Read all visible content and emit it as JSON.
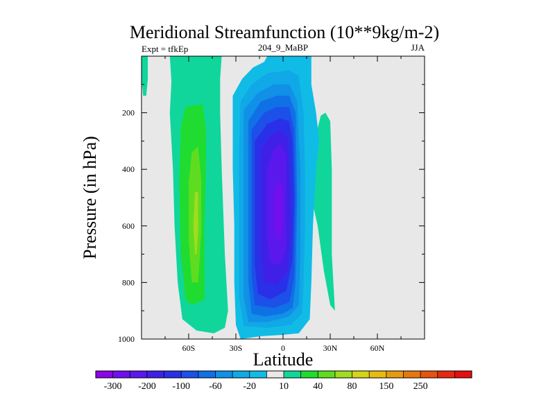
{
  "chart_data": {
    "type": "contour",
    "title": "Meridional Streamfunction (10**9kg/m-2)",
    "left_label": "Expt = tfkEp",
    "center_label": "204_9_MaBP",
    "right_label": "JJA",
    "xlabel": "Latitude",
    "ylabel": "Pressure (in hPa)",
    "xlim": [
      -90,
      90
    ],
    "ylim": [
      1000,
      0
    ],
    "x_ticks": [
      {
        "value": -60,
        "label": "60S"
      },
      {
        "value": -30,
        "label": "30S"
      },
      {
        "value": 0,
        "label": "0"
      },
      {
        "value": 30,
        "label": "30N"
      },
      {
        "value": 60,
        "label": "60N"
      }
    ],
    "y_ticks": [
      {
        "value": 200,
        "label": "200"
      },
      {
        "value": 400,
        "label": "400"
      },
      {
        "value": 600,
        "label": "600"
      },
      {
        "value": 800,
        "label": "800"
      },
      {
        "value": 1000,
        "label": "1000"
      }
    ],
    "colorbar": {
      "colors": [
        "#8a06e6",
        "#7010ee",
        "#5a18ee",
        "#4020e6",
        "#2a30e8",
        "#1c50e8",
        "#1070e6",
        "#1090e6",
        "#10a8e6",
        "#10bce6",
        "#e8e8e8",
        "#10d69c",
        "#20dc30",
        "#60dc20",
        "#a0dc20",
        "#d4d41a",
        "#e6bc10",
        "#e69a10",
        "#e67810",
        "#e65210",
        "#e62a10",
        "#e60e0e"
      ],
      "labels": [
        {
          "boundary": 1,
          "text": "-300"
        },
        {
          "boundary": 3,
          "text": "-200"
        },
        {
          "boundary": 5,
          "text": "-100"
        },
        {
          "boundary": 7,
          "text": "-60"
        },
        {
          "boundary": 9,
          "text": "-20"
        },
        {
          "boundary": 11,
          "text": "10"
        },
        {
          "boundary": 13,
          "text": "40"
        },
        {
          "boundary": 15,
          "text": "80"
        },
        {
          "boundary": 17,
          "text": "150"
        },
        {
          "boundary": 19,
          "text": "250"
        }
      ]
    },
    "background_color": "#e8e8e8",
    "regions": [
      {
        "name": "sh-cell-outer",
        "color": "#10d69c",
        "points": [
          [
            -80,
            0
          ],
          [
            -72,
            0
          ],
          [
            -71,
            90
          ],
          [
            -72,
            200
          ],
          [
            -70,
            400
          ],
          [
            -69,
            600
          ],
          [
            -67,
            800
          ],
          [
            -64,
            930
          ],
          [
            -55,
            970
          ],
          [
            -44,
            980
          ],
          [
            -37,
            960
          ],
          [
            -35,
            900
          ],
          [
            -37,
            700
          ],
          [
            -39,
            400
          ],
          [
            -40,
            200
          ],
          [
            -40,
            80
          ],
          [
            -39,
            0
          ]
        ]
      },
      {
        "name": "sh-cell-level2",
        "color": "#20dc30",
        "points": [
          [
            -62,
            180
          ],
          [
            -51,
            170
          ],
          [
            -49,
            260
          ],
          [
            -49,
            400
          ],
          [
            -50,
            600
          ],
          [
            -50,
            800
          ],
          [
            -50,
            860
          ],
          [
            -58,
            880
          ],
          [
            -62,
            860
          ],
          [
            -65,
            700
          ],
          [
            -66,
            450
          ],
          [
            -65,
            250
          ]
        ]
      },
      {
        "name": "sh-cell-core",
        "color": "#60dc20",
        "points": [
          [
            -58,
            340
          ],
          [
            -54,
            320
          ],
          [
            -52,
            440
          ],
          [
            -52,
            620
          ],
          [
            -54,
            800
          ],
          [
            -58,
            800
          ],
          [
            -60,
            650
          ],
          [
            -60,
            450
          ]
        ]
      },
      {
        "name": "sh-cell-inner",
        "color": "#a0dc20",
        "points": [
          [
            -56,
            480
          ],
          [
            -54,
            480
          ],
          [
            -54,
            620
          ],
          [
            -55,
            700
          ],
          [
            -56,
            700
          ],
          [
            -57,
            600
          ]
        ]
      },
      {
        "name": "polar-strip",
        "color": "#10d69c",
        "points": [
          [
            -90,
            0
          ],
          [
            -86,
            0
          ],
          [
            -86,
            80
          ],
          [
            -87,
            140
          ],
          [
            -89,
            140
          ],
          [
            -90,
            80
          ]
        ]
      },
      {
        "name": "nh-cell",
        "color": "#10d69c",
        "points": [
          [
            17,
            400
          ],
          [
            20,
            300
          ],
          [
            24,
            210
          ],
          [
            27,
            200
          ],
          [
            30,
            230
          ],
          [
            31,
            400
          ],
          [
            31,
            700
          ],
          [
            32,
            800
          ],
          [
            33,
            900
          ],
          [
            30,
            880
          ],
          [
            26,
            760
          ],
          [
            22,
            600
          ],
          [
            18,
            500
          ]
        ]
      },
      {
        "name": "hadley-l1",
        "color": "#10bce6",
        "points": [
          [
            -32,
            140
          ],
          [
            -26,
            80
          ],
          [
            -19,
            40
          ],
          [
            -12,
            20
          ],
          [
            -10,
            0
          ],
          [
            18,
            0
          ],
          [
            18,
            100
          ],
          [
            21,
            200
          ],
          [
            23,
            300
          ],
          [
            21,
            400
          ],
          [
            19,
            600
          ],
          [
            18,
            800
          ],
          [
            17,
            930
          ],
          [
            10,
            980
          ],
          [
            0,
            985
          ],
          [
            -14,
            990
          ],
          [
            -27,
            1000
          ],
          [
            -30,
            950
          ],
          [
            -31,
            800
          ],
          [
            -31,
            600
          ],
          [
            -32,
            400
          ],
          [
            -32,
            250
          ]
        ]
      },
      {
        "name": "hadley-l2",
        "color": "#10a8e6",
        "points": [
          [
            -27,
            160
          ],
          [
            -20,
            100
          ],
          [
            -10,
            60
          ],
          [
            4,
            50
          ],
          [
            10,
            70
          ],
          [
            13,
            200
          ],
          [
            14,
            400
          ],
          [
            14,
            600
          ],
          [
            13,
            800
          ],
          [
            12,
            910
          ],
          [
            5,
            950
          ],
          [
            -10,
            960
          ],
          [
            -25,
            955
          ],
          [
            -28,
            850
          ],
          [
            -28,
            600
          ],
          [
            -28,
            350
          ]
        ]
      },
      {
        "name": "hadley-l3",
        "color": "#1090e6",
        "points": [
          [
            -25,
            190
          ],
          [
            -16,
            130
          ],
          [
            -6,
            100
          ],
          [
            4,
            100
          ],
          [
            9,
            160
          ],
          [
            11,
            400
          ],
          [
            11,
            700
          ],
          [
            10,
            880
          ],
          [
            4,
            920
          ],
          [
            -10,
            940
          ],
          [
            -22,
            940
          ],
          [
            -25,
            850
          ],
          [
            -25,
            600
          ],
          [
            -25,
            350
          ]
        ]
      },
      {
        "name": "hadley-l4",
        "color": "#1070e6",
        "points": [
          [
            -22,
            230
          ],
          [
            -14,
            160
          ],
          [
            -4,
            140
          ],
          [
            4,
            140
          ],
          [
            8,
            200
          ],
          [
            9,
            500
          ],
          [
            8,
            800
          ],
          [
            6,
            890
          ],
          [
            0,
            910
          ],
          [
            -12,
            920
          ],
          [
            -20,
            910
          ],
          [
            -22,
            800
          ],
          [
            -22,
            500
          ]
        ]
      },
      {
        "name": "hadley-l5",
        "color": "#1c50e8",
        "points": [
          [
            -20,
            260
          ],
          [
            -12,
            200
          ],
          [
            -4,
            180
          ],
          [
            4,
            180
          ],
          [
            7,
            260
          ],
          [
            8,
            500
          ],
          [
            7,
            780
          ],
          [
            4,
            870
          ],
          [
            -6,
            890
          ],
          [
            -18,
            880
          ],
          [
            -20,
            780
          ],
          [
            -20,
            500
          ]
        ]
      },
      {
        "name": "hadley-l6",
        "color": "#2a30e8",
        "points": [
          [
            -18,
            300
          ],
          [
            -10,
            240
          ],
          [
            -2,
            220
          ],
          [
            4,
            230
          ],
          [
            6,
            300
          ],
          [
            7,
            500
          ],
          [
            6,
            720
          ],
          [
            2,
            830
          ],
          [
            -8,
            860
          ],
          [
            -16,
            840
          ],
          [
            -18,
            740
          ],
          [
            -18,
            500
          ]
        ]
      },
      {
        "name": "hadley-l7",
        "color": "#4020e6",
        "points": [
          [
            -14,
            330
          ],
          [
            -8,
            280
          ],
          [
            -2,
            260
          ],
          [
            3,
            290
          ],
          [
            4,
            400
          ],
          [
            5,
            600
          ],
          [
            3,
            760
          ],
          [
            -4,
            810
          ],
          [
            -12,
            800
          ],
          [
            -14,
            700
          ],
          [
            -14,
            500
          ]
        ]
      },
      {
        "name": "hadley-core",
        "color": "#5a18ee",
        "points": [
          [
            -10,
            400
          ],
          [
            -6,
            330
          ],
          [
            -2,
            310
          ],
          [
            2,
            350
          ],
          [
            2,
            500
          ],
          [
            2,
            680
          ],
          [
            -2,
            740
          ],
          [
            -8,
            730
          ],
          [
            -10,
            640
          ],
          [
            -10,
            520
          ]
        ]
      },
      {
        "name": "hadley-max",
        "color": "#7010ee",
        "points": [
          [
            -6,
            480
          ],
          [
            -3,
            440
          ],
          [
            0,
            460
          ],
          [
            0,
            600
          ],
          [
            -3,
            660
          ],
          [
            -6,
            620
          ]
        ]
      }
    ]
  }
}
